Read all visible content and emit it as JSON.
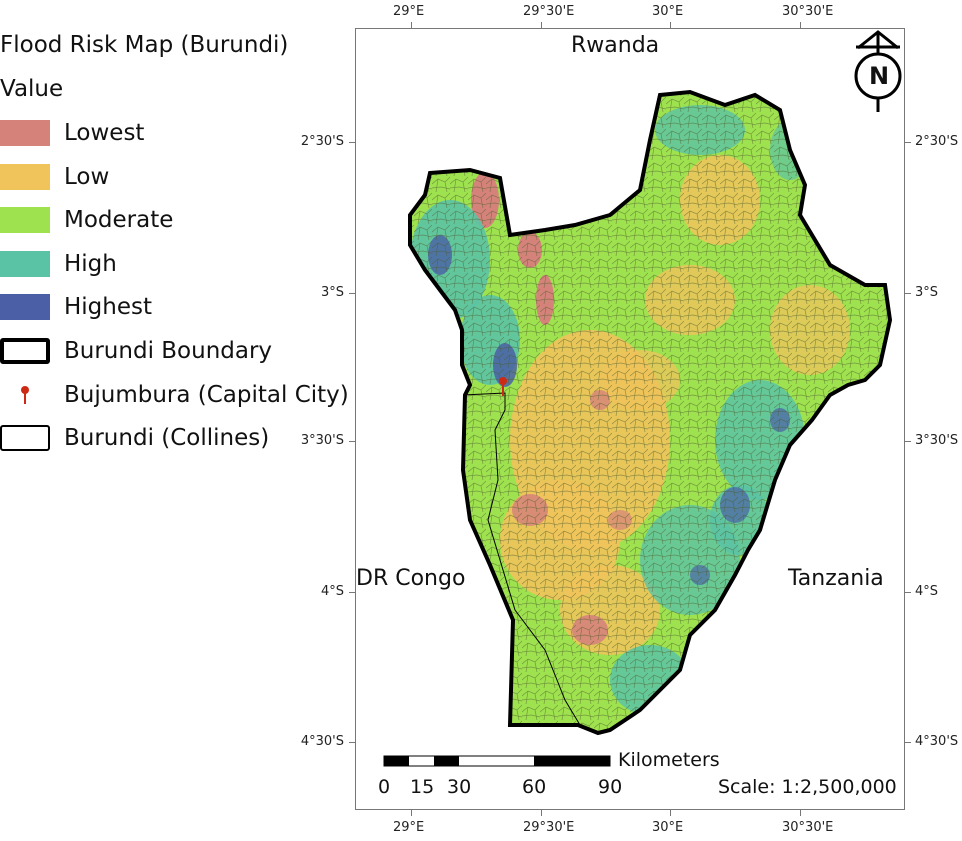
{
  "legend": {
    "title": "Flood Risk Map (Burundi)",
    "subtitle": "Value",
    "items": [
      {
        "label": "Lowest",
        "color": "#d5837a",
        "kind": "fill"
      },
      {
        "label": "Low",
        "color": "#f0c35b",
        "kind": "fill"
      },
      {
        "label": "Moderate",
        "color": "#9fe24f",
        "kind": "fill"
      },
      {
        "label": "High",
        "color": "#5bc3a5",
        "kind": "fill"
      },
      {
        "label": "Highest",
        "color": "#4a5fa6",
        "kind": "fill"
      },
      {
        "label": "Burundi Boundary",
        "color": "#000000",
        "kind": "thick-outline"
      },
      {
        "label": "Bujumbura (Capital City)",
        "color": "#cc2a14",
        "kind": "pin"
      },
      {
        "label": "Burundi (Collines)",
        "color": "#000000",
        "kind": "thin-outline"
      }
    ]
  },
  "axes": {
    "x_ticks": [
      "29°E",
      "29°30'E",
      "30°E",
      "30°30'E"
    ],
    "y_ticks": [
      "2°30'S",
      "3°S",
      "3°30'S",
      "4°S",
      "4°30'S"
    ]
  },
  "countries": {
    "north": "Rwanda",
    "west": "DR Congo",
    "east": "Tanzania"
  },
  "north_arrow": {
    "letter": "N"
  },
  "scale_bar": {
    "unit": "Kilometers",
    "ticks": [
      "0",
      "15",
      "30",
      "60",
      "90"
    ],
    "scale_text": "Scale: 1:2,500,000"
  },
  "capital": {
    "name": "Bujumbura"
  }
}
